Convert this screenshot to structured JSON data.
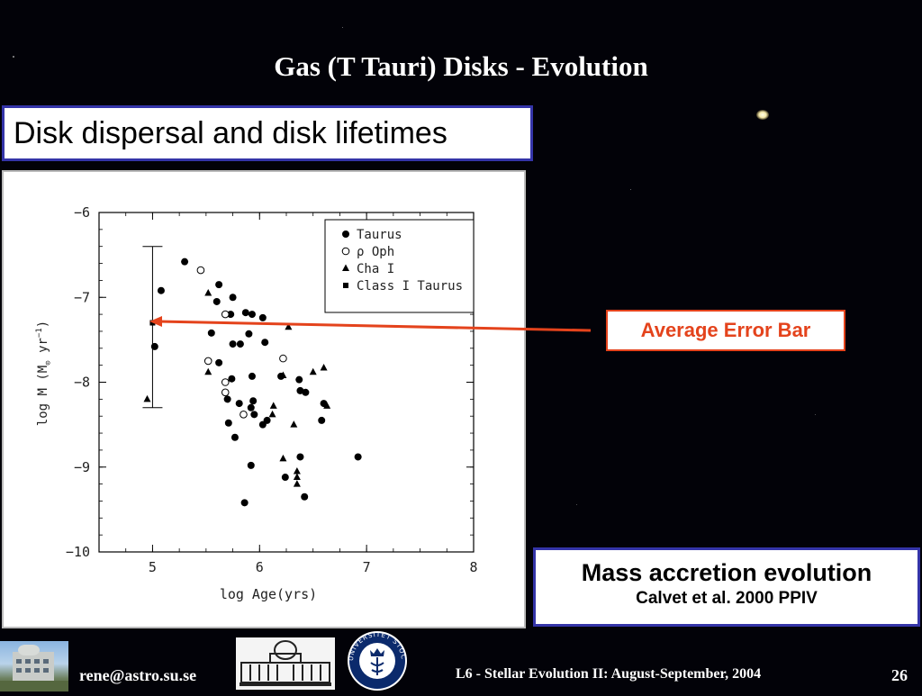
{
  "slide": {
    "title": "Gas (T Tauri) Disks - Evolution",
    "subtitle": "Disk dispersal and disk lifetimes",
    "annotation_label": "Average Error Bar",
    "caption_title": "Mass accretion evolution",
    "caption_citation": "Calvet et al. 2000 PPIV"
  },
  "footer": {
    "email": "rene@astro.su.se",
    "course": "L6 - Stellar Evolution II: August-September, 2004",
    "page_number": "26",
    "seal_text": "UNIVERSITET STOCKHOLMS"
  },
  "colors": {
    "background": "#020208",
    "box_border": "#3434a8",
    "annotation": "#e4431c"
  },
  "chart_data": {
    "type": "scatter",
    "xlabel": "log Age(yrs)",
    "ylabel_parts": [
      "log ",
      "M",
      " (M",
      "⊙",
      " yr",
      "−1",
      ")"
    ],
    "xlim": [
      4.5,
      8
    ],
    "ylim": [
      -10,
      -6
    ],
    "x_ticks": [
      5,
      6,
      7,
      8
    ],
    "y_ticks": [
      -6,
      -7,
      -8,
      -9,
      -10
    ],
    "y_tick_labels": [
      "−6",
      "−7",
      "−8",
      "−9",
      "−10"
    ],
    "legend_position": "top-right",
    "legend": [
      "Taurus",
      "ρ Oph",
      "Cha I",
      "Class I Taurus"
    ],
    "error_bar": {
      "x": 5.0,
      "y_low": -8.3,
      "y_high": -6.4
    },
    "series": [
      {
        "name": "Taurus",
        "marker": "filled-circle",
        "points": [
          [
            5.3,
            -6.58
          ],
          [
            5.08,
            -6.92
          ],
          [
            5.62,
            -6.85
          ],
          [
            5.6,
            -7.05
          ],
          [
            5.73,
            -7.2
          ],
          [
            5.87,
            -7.18
          ],
          [
            5.75,
            -7.0
          ],
          [
            5.93,
            -7.2
          ],
          [
            6.03,
            -7.24
          ],
          [
            5.9,
            -7.43
          ],
          [
            5.55,
            -7.42
          ],
          [
            5.82,
            -7.55
          ],
          [
            5.75,
            -7.55
          ],
          [
            6.05,
            -7.53
          ],
          [
            5.02,
            -7.58
          ],
          [
            5.62,
            -7.77
          ],
          [
            5.93,
            -7.93
          ],
          [
            6.2,
            -7.93
          ],
          [
            5.74,
            -7.96
          ],
          [
            6.37,
            -7.97
          ],
          [
            5.7,
            -8.2
          ],
          [
            5.94,
            -8.22
          ],
          [
            6.38,
            -8.1
          ],
          [
            6.43,
            -8.12
          ],
          [
            5.92,
            -8.3
          ],
          [
            6.6,
            -8.25
          ],
          [
            5.81,
            -8.25
          ],
          [
            5.95,
            -8.38
          ],
          [
            5.71,
            -8.48
          ],
          [
            6.07,
            -8.45
          ],
          [
            6.03,
            -8.5
          ],
          [
            6.58,
            -8.45
          ],
          [
            5.77,
            -8.65
          ],
          [
            6.38,
            -8.88
          ],
          [
            6.92,
            -8.88
          ],
          [
            5.92,
            -8.98
          ],
          [
            6.24,
            -9.12
          ],
          [
            5.86,
            -9.42
          ],
          [
            6.42,
            -9.35
          ]
        ]
      },
      {
        "name": "ρ Oph",
        "marker": "open-circle",
        "points": [
          [
            5.45,
            -6.68
          ],
          [
            5.68,
            -7.2
          ],
          [
            5.52,
            -7.75
          ],
          [
            6.22,
            -7.72
          ],
          [
            5.68,
            -8.0
          ],
          [
            5.68,
            -8.12
          ],
          [
            5.85,
            -8.38
          ]
        ]
      },
      {
        "name": "Cha I",
        "marker": "triangle",
        "points": [
          [
            5.52,
            -6.95
          ],
          [
            6.27,
            -7.35
          ],
          [
            5.52,
            -7.88
          ],
          [
            6.5,
            -7.88
          ],
          [
            6.6,
            -7.83
          ],
          [
            6.22,
            -7.92
          ],
          [
            6.13,
            -8.28
          ],
          [
            6.12,
            -8.38
          ],
          [
            6.63,
            -8.28
          ],
          [
            6.32,
            -8.5
          ],
          [
            6.22,
            -8.9
          ],
          [
            6.35,
            -9.05
          ],
          [
            6.35,
            -9.12
          ],
          [
            6.35,
            -9.2
          ],
          [
            4.95,
            -8.2
          ]
        ]
      },
      {
        "name": "Class I Taurus",
        "marker": "square",
        "points": [
          [
            5.0,
            -7.3
          ]
        ]
      }
    ]
  }
}
